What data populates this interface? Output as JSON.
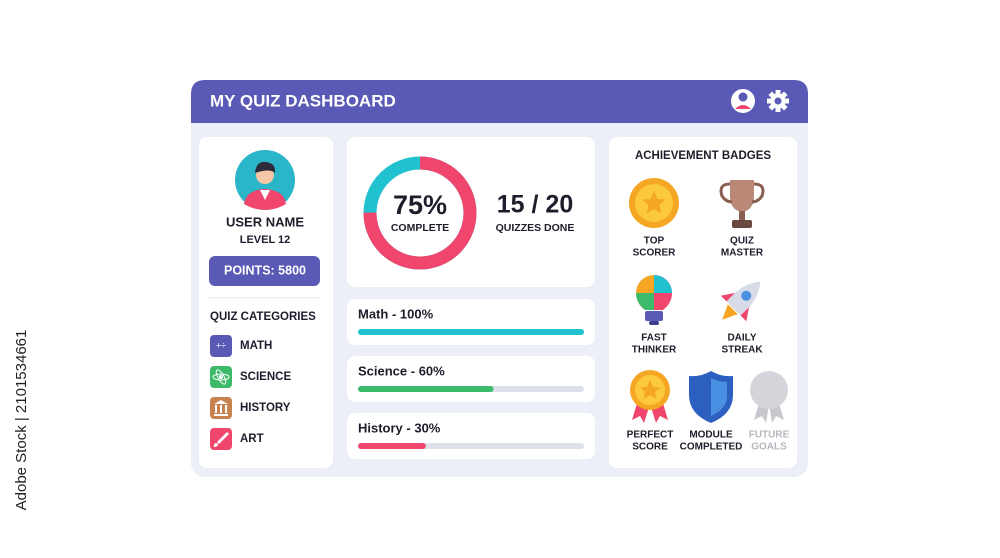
{
  "header": {
    "title": "MY QUIZ DASHBOARD"
  },
  "profile": {
    "name": "USER NAME",
    "level": "LEVEL 12",
    "points": "POINTS: 5800"
  },
  "categories": {
    "title": "QUIZ CATEGORIES",
    "items": [
      "MATH",
      "SCIENCE",
      "HISTORY",
      "ART"
    ]
  },
  "summary": {
    "completion": {
      "value": 75,
      "label": "75%"
    },
    "completion_caption": "COMPLETE",
    "quizzes": "15 / 20",
    "quizzes_caption": "QUIZZES DONE"
  },
  "progress": {
    "xlim": [
      0,
      100
    ],
    "items": [
      {
        "label": "Math - 100%",
        "value": 100,
        "color": "#22c1cf"
      },
      {
        "label": "Science - 60%",
        "value": 60,
        "color": "#3dba6a"
      },
      {
        "label": "History - 30%",
        "value": 30,
        "color": "#f0466e"
      }
    ]
  },
  "badges": {
    "title": "ACHIEVEMENT BADGES",
    "items": [
      [
        "TOP",
        "SCORER"
      ],
      [
        "QUIZ",
        "MASTER"
      ],
      [
        "FAST",
        "THINKER"
      ],
      [
        "DAILY",
        "STREAK"
      ],
      [
        "PERFECT",
        "SCORE"
      ],
      [
        "MODULE",
        "COMPLETED"
      ],
      [
        "FUTURE",
        "GOALS"
      ]
    ]
  },
  "watermark": "Adobe Stock | 2101534661"
}
